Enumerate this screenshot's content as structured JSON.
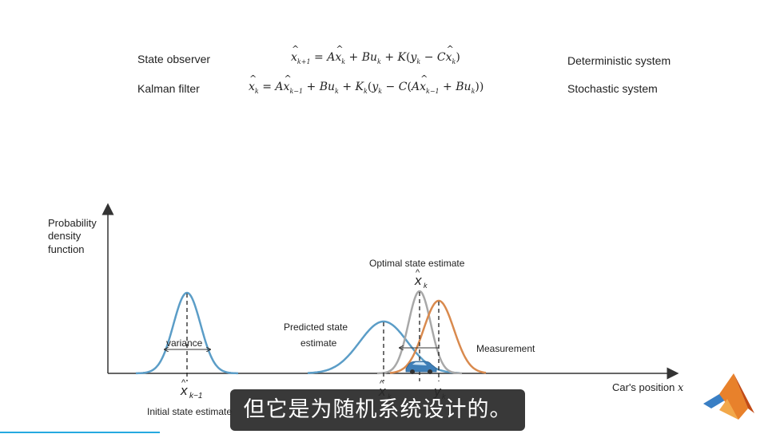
{
  "equations": {
    "row1": {
      "label": "State observer",
      "right": "Deterministic system"
    },
    "row2": {
      "label": "Kalman filter",
      "right": "Stochastic system"
    }
  },
  "plot": {
    "ylabel": [
      "Probability",
      "density",
      "function"
    ],
    "xlabel": "Car's position",
    "xlabel_var": "x",
    "labels": {
      "variance": "variance",
      "predicted": [
        "Predicted state",
        "estimate"
      ],
      "optimal": "Optimal state estimate",
      "measurement": "Measurement",
      "initial": "Initial state estimate",
      "x_prev": "k−1",
      "x_k": "k",
      "y_k": "k"
    },
    "colors": {
      "initial": "#5b9dc7",
      "predicted": "#5b9dc7",
      "optimal": "#a8a8a8",
      "measurement": "#d98a4e",
      "axis": "#333333"
    }
  },
  "subtitle": "但它是为随机系统设计的。",
  "icons": [
    "car-icon",
    "matlab-logo-icon"
  ]
}
